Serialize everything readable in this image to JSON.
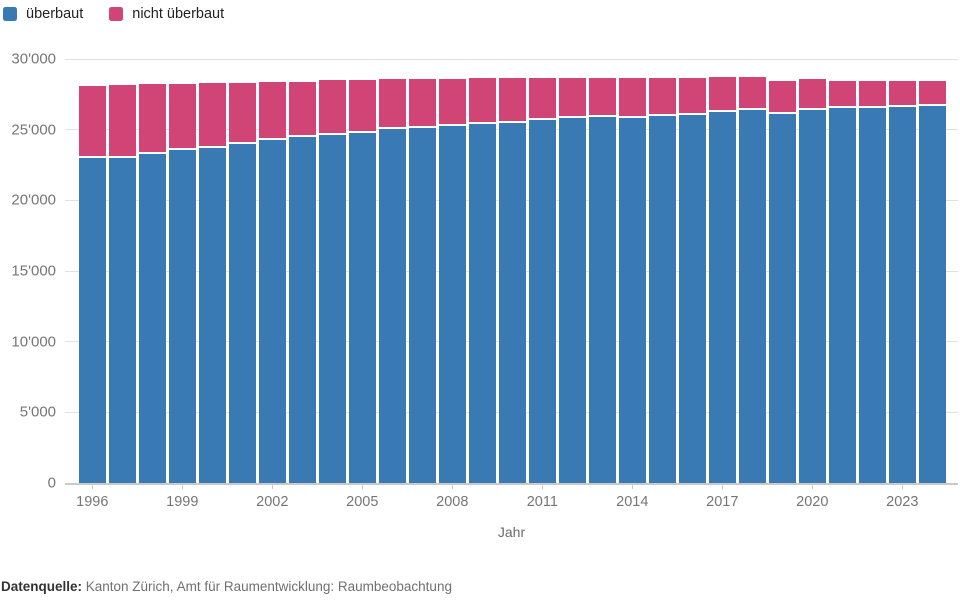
{
  "legend": {
    "items": [
      {
        "label": "überbaut",
        "color": "#3a7ab4"
      },
      {
        "label": "nicht überbaut",
        "color": "#d04476"
      }
    ]
  },
  "chart_data": {
    "type": "bar",
    "stacked": true,
    "title": "",
    "xlabel": "Jahr",
    "ylabel": "",
    "ylim": [
      0,
      30000
    ],
    "grid": "horizontal",
    "legend_position": "top-left",
    "y_ticks": [
      {
        "value": 0,
        "label": "0"
      },
      {
        "value": 5000,
        "label": "5'000"
      },
      {
        "value": 10000,
        "label": "10'000"
      },
      {
        "value": 15000,
        "label": "15'000"
      },
      {
        "value": 20000,
        "label": "20'000"
      },
      {
        "value": 25000,
        "label": "25'000"
      },
      {
        "value": 30000,
        "label": "30'000"
      }
    ],
    "x_tick_years": [
      1996,
      1999,
      2002,
      2005,
      2008,
      2011,
      2014,
      2017,
      2020,
      2023
    ],
    "categories": [
      1996,
      1997,
      1998,
      1999,
      2000,
      2001,
      2002,
      2003,
      2004,
      2005,
      2006,
      2007,
      2008,
      2009,
      2010,
      2011,
      2012,
      2013,
      2014,
      2015,
      2016,
      2017,
      2018,
      2019,
      2020,
      2021,
      2022,
      2023,
      2024
    ],
    "series": [
      {
        "name": "überbaut",
        "color": "#3a7ab4",
        "values": [
          23010,
          23030,
          23260,
          23570,
          23740,
          23990,
          24250,
          24460,
          24620,
          24790,
          25020,
          25120,
          25260,
          25400,
          25470,
          25680,
          25830,
          25920,
          25850,
          25990,
          26040,
          26230,
          26370,
          26130,
          26370,
          26510,
          26510,
          26600,
          26650
        ]
      },
      {
        "name": "nicht überbaut",
        "color": "#d04476",
        "values": [
          5080,
          5130,
          4970,
          4660,
          4590,
          4340,
          4150,
          3940,
          3870,
          3700,
          3570,
          3470,
          3330,
          3230,
          3210,
          3000,
          2850,
          2760,
          2830,
          2690,
          2640,
          2520,
          2380,
          2340,
          2190,
          1960,
          1960,
          1870,
          1820
        ]
      }
    ]
  },
  "footer": {
    "source_label": "Datenquelle:",
    "source_text": " Kanton Zürich, Amt für Raumentwicklung: Raumbeobachtung"
  }
}
